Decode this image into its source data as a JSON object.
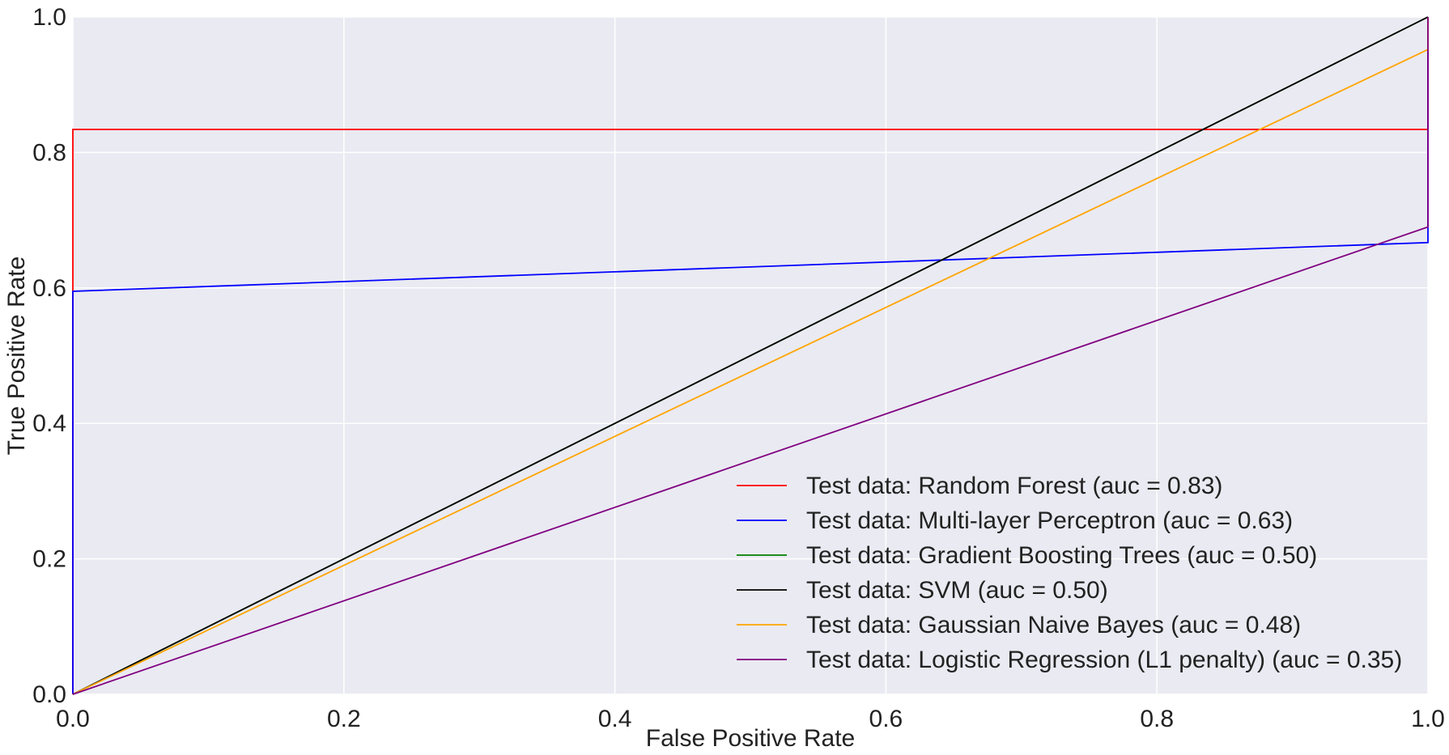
{
  "chart_data": {
    "type": "line",
    "title": "",
    "xlabel": "False Positive Rate",
    "ylabel": "True Positive Rate",
    "xlim": [
      0,
      1
    ],
    "ylim": [
      0,
      1
    ],
    "xticks": [
      "0.0",
      "0.2",
      "0.4",
      "0.6",
      "0.8",
      "1.0"
    ],
    "yticks": [
      "0.0",
      "0.2",
      "0.4",
      "0.6",
      "0.8",
      "1.0"
    ],
    "grid": true,
    "legend_position": "lower-right",
    "background": "#eaeaf2",
    "series": [
      {
        "name": "Test data: Random Forest (auc = 0.83)",
        "color": "#ff0000",
        "x": [
          0.0,
          0.0,
          0.0,
          1.0,
          1.0
        ],
        "y": [
          0.0,
          0.05,
          0.834,
          0.834,
          1.0
        ]
      },
      {
        "name": "Test data: Multi-layer Perceptron (auc = 0.63)",
        "color": "#0000ff",
        "x": [
          0.0,
          0.0,
          0.0,
          1.0,
          1.0
        ],
        "y": [
          0.0,
          0.31,
          0.595,
          0.667,
          1.0
        ]
      },
      {
        "name": "Test data: Gradient Boosting Trees (auc = 0.50)",
        "color": "#008000",
        "x": [
          0.0,
          1.0
        ],
        "y": [
          0.0,
          1.0
        ]
      },
      {
        "name": "Test data: SVM (auc = 0.50)",
        "color": "#000000",
        "x": [
          0.0,
          1.0
        ],
        "y": [
          0.0,
          1.0
        ]
      },
      {
        "name": "Test data: Gaussian Naive Bayes (auc = 0.48)",
        "color": "#ffa500",
        "x": [
          0.0,
          1.0,
          1.0
        ],
        "y": [
          0.0,
          0.952,
          1.0
        ]
      },
      {
        "name": "Test data: Logistic Regression (L1 penalty) (auc = 0.35)",
        "color": "#800080",
        "x": [
          0.0,
          1.0,
          1.0
        ],
        "y": [
          0.0,
          0.69,
          1.0
        ]
      }
    ]
  }
}
